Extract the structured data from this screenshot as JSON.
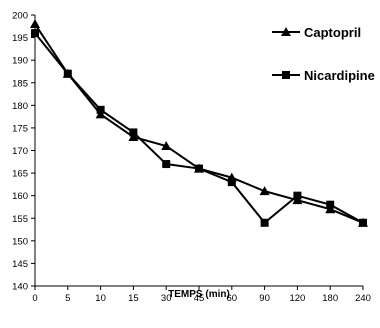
{
  "chart_data": {
    "type": "line",
    "title": "",
    "xlabel": "TEMPS (min)",
    "ylabel": "",
    "categories": [
      "0",
      "5",
      "10",
      "15",
      "30",
      "45",
      "60",
      "90",
      "120",
      "180",
      "240"
    ],
    "ylim": [
      140,
      200
    ],
    "yticks": [
      140,
      145,
      150,
      155,
      160,
      165,
      170,
      175,
      180,
      185,
      190,
      195,
      200
    ],
    "grid": false,
    "legend": "top-right",
    "series": [
      {
        "name": "Captopril",
        "marker": "triangle",
        "color": "#000000",
        "values": [
          198,
          187,
          178,
          173,
          171,
          166,
          164,
          161,
          159,
          157,
          154
        ]
      },
      {
        "name": "Nicardipine",
        "marker": "square",
        "color": "#000000",
        "values": [
          196,
          187,
          179,
          174,
          167,
          166,
          163,
          154,
          160,
          158,
          154
        ]
      }
    ]
  }
}
